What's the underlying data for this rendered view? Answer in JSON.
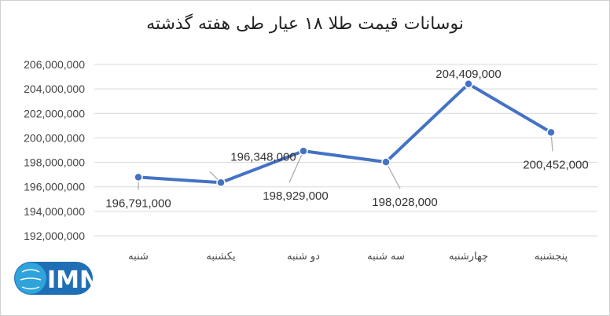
{
  "chart_data": {
    "type": "line",
    "title": "نوسانات قیمت طلا ۱۸ عیار طی هفته گذشته",
    "categories": [
      "شنبه",
      "یکشنبه",
      "دو شنبه",
      "سه شنبه",
      "چهارشنبه",
      "پنجشنبه"
    ],
    "series": [
      {
        "values": [
          196791000,
          196348000,
          198929000,
          198028000,
          204409000,
          200452000
        ],
        "labels": [
          "196,791,000",
          "196,348,000",
          "198,929,000",
          "198,028,000",
          "204,409,000",
          "200,452,000"
        ],
        "color": "#4472c4"
      }
    ],
    "ylim": [
      192000000,
      206000000
    ],
    "yticks": [
      "192,000,000",
      "194,000,000",
      "196,000,000",
      "198,000,000",
      "200,000,000",
      "202,000,000",
      "204,000,000",
      "206,000,000"
    ],
    "grid": true,
    "legend": "none"
  },
  "logo": {
    "text": "IMNA",
    "colors": {
      "primary": "#1f6fb5",
      "secondary": "#2ea3dc"
    }
  }
}
